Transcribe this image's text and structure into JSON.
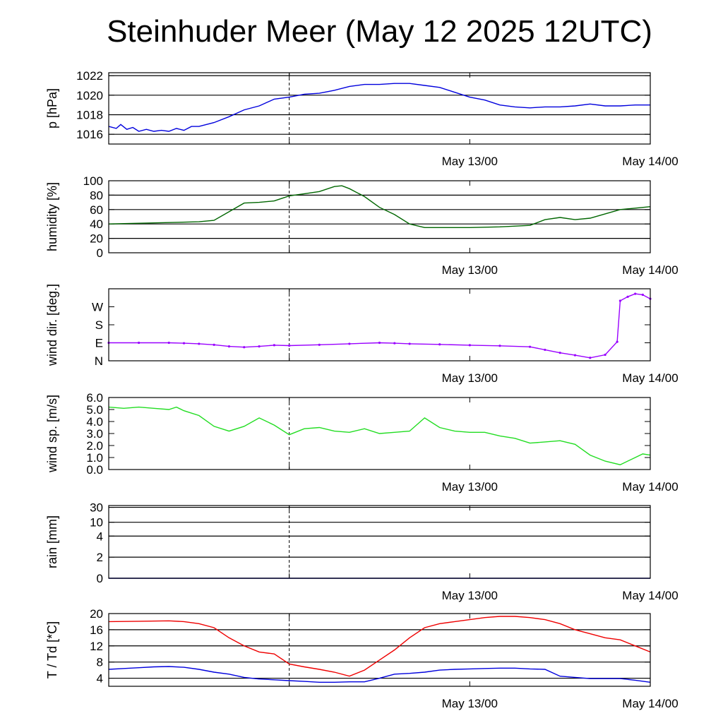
{
  "title": "Steinhuder Meer (May 12 2025 12UTC)",
  "chart_data": [
    {
      "type": "line",
      "ylabel": "p [hPa]",
      "ylim": [
        1015,
        1022.3
      ],
      "yticks": [
        1016,
        1018,
        1020,
        1022
      ],
      "ytick_labels": [
        "1016",
        "1018",
        "1020",
        "1022"
      ],
      "grid": true,
      "xlim": [
        0,
        36
      ],
      "xticks": [
        12,
        24,
        36
      ],
      "xtick_labels": [
        "",
        "May 13/00",
        "May 14/00"
      ],
      "marker_x": 12,
      "series": [
        {
          "color": "#0000dd",
          "x": [
            0,
            0.5,
            0.8,
            1.2,
            1.6,
            2.0,
            2.5,
            3.0,
            3.5,
            4.0,
            4.5,
            5.0,
            5.5,
            6.0,
            7.0,
            8.0,
            9.0,
            10.0,
            11.0,
            12.0,
            13.0,
            14.0,
            15.0,
            16.0,
            17.0,
            18.0,
            19.0,
            20.0,
            21.0,
            22.0,
            23.0,
            24.0,
            25.0,
            26.0,
            27.0,
            28.0,
            29.0,
            30.0,
            31.0,
            32.0,
            33.0,
            34.0,
            35.0,
            36.0
          ],
          "y": [
            1016.8,
            1016.6,
            1017.0,
            1016.5,
            1016.7,
            1016.3,
            1016.5,
            1016.3,
            1016.4,
            1016.3,
            1016.6,
            1016.4,
            1016.8,
            1016.8,
            1017.2,
            1017.8,
            1018.5,
            1018.9,
            1019.6,
            1019.8,
            1020.1,
            1020.2,
            1020.5,
            1020.9,
            1021.1,
            1021.1,
            1021.2,
            1021.2,
            1021.0,
            1020.8,
            1020.3,
            1019.8,
            1019.5,
            1019.0,
            1018.8,
            1018.7,
            1018.8,
            1018.8,
            1018.9,
            1019.1,
            1018.9,
            1018.9,
            1019.0,
            1019.0
          ]
        }
      ]
    },
    {
      "type": "line",
      "ylabel": "humidity [%]",
      "ylim": [
        0,
        100
      ],
      "yticks": [
        0,
        20,
        40,
        60,
        80,
        100
      ],
      "ytick_labels": [
        "0",
        "20",
        "40",
        "60",
        "80",
        "100"
      ],
      "grid": true,
      "xlim": [
        0,
        36
      ],
      "xticks": [
        12,
        24,
        36
      ],
      "xtick_labels": [
        "",
        "May 13/00",
        "May 14/00"
      ],
      "marker_x": 12,
      "series": [
        {
          "color": "#006600",
          "x": [
            0,
            2,
            4,
            6,
            7,
            8,
            9,
            10,
            11,
            12,
            13,
            14,
            15,
            15.5,
            16,
            17,
            18,
            19,
            20,
            21,
            22,
            24,
            26,
            28,
            29,
            30,
            31,
            32,
            33,
            34,
            35,
            36
          ],
          "y": [
            40,
            41,
            42,
            43,
            45,
            57,
            69,
            70,
            72,
            79,
            82,
            85,
            92,
            93,
            89,
            78,
            63,
            53,
            40,
            35,
            35,
            35,
            36,
            38,
            46,
            49,
            46,
            48,
            54,
            60,
            62,
            64
          ]
        }
      ]
    },
    {
      "type": "scatter",
      "ylabel": "wind dir. [deg.]",
      "ylim": [
        0,
        360
      ],
      "yticks": [
        0,
        90,
        180,
        270
      ],
      "ytick_labels": [
        "N",
        "E",
        "S",
        "W"
      ],
      "grid": false,
      "xlim": [
        0,
        36
      ],
      "xticks": [
        12,
        24,
        36
      ],
      "xtick_labels": [
        "",
        "May 13/00",
        "May 14/00"
      ],
      "marker_x": 12,
      "series": [
        {
          "color": "#9900ff",
          "x": [
            0,
            2,
            4,
            5,
            6,
            7,
            8,
            9,
            10,
            11,
            12,
            14,
            16,
            18,
            19,
            20,
            22,
            24,
            26,
            28,
            29,
            30,
            31,
            32,
            33,
            33.8,
            34,
            34.5,
            35,
            35.5,
            36
          ],
          "y": [
            90,
            90,
            90,
            88,
            85,
            80,
            72,
            68,
            72,
            78,
            76,
            80,
            85,
            90,
            88,
            85,
            82,
            78,
            75,
            70,
            55,
            40,
            28,
            15,
            30,
            95,
            300,
            320,
            335,
            330,
            310
          ]
        }
      ]
    },
    {
      "type": "line",
      "ylabel": "wind sp. [m/s]",
      "ylim": [
        0,
        6.0
      ],
      "yticks": [
        0,
        1,
        2,
        3,
        4,
        5,
        6
      ],
      "ytick_labels": [
        "0.0",
        "1.0",
        "2.0",
        "3.0",
        "4.0",
        "5.0",
        "6.0"
      ],
      "grid": false,
      "xlim": [
        0,
        36
      ],
      "xticks": [
        12,
        24,
        36
      ],
      "xtick_labels": [
        "",
        "May 13/00",
        "May 14/00"
      ],
      "marker_x": 12,
      "series": [
        {
          "color": "#22dd22",
          "x": [
            0,
            1,
            2,
            3,
            4,
            4.5,
            5,
            6,
            7,
            8,
            9,
            10,
            11,
            12,
            13,
            14,
            15,
            16,
            17,
            18,
            19,
            20,
            21,
            22,
            23,
            24,
            25,
            26,
            27,
            28,
            29,
            30,
            31,
            32,
            33,
            34,
            35,
            35.5,
            36
          ],
          "y": [
            5.2,
            5.1,
            5.2,
            5.1,
            5.0,
            5.2,
            4.9,
            4.5,
            3.6,
            3.2,
            3.6,
            4.3,
            3.7,
            2.9,
            3.4,
            3.5,
            3.2,
            3.1,
            3.4,
            3.0,
            3.1,
            3.2,
            4.3,
            3.5,
            3.2,
            3.1,
            3.1,
            2.8,
            2.6,
            2.2,
            2.3,
            2.4,
            2.1,
            1.2,
            0.7,
            0.4,
            1.0,
            1.3,
            1.2
          ]
        }
      ]
    },
    {
      "type": "line",
      "ylabel": "rain [mm]",
      "ylim": [
        0,
        30
      ],
      "yticks": [
        0,
        2,
        4,
        10,
        30
      ],
      "ytick_labels": [
        "0",
        "2",
        "4",
        "10",
        "30"
      ],
      "scale": "nonlinear",
      "grid": true,
      "xlim": [
        0,
        36
      ],
      "xticks": [
        12,
        24,
        36
      ],
      "xtick_labels": [
        "",
        "May 13/00",
        "May 14/00"
      ],
      "marker_x": 12,
      "series": [
        {
          "color": "#0000aa",
          "x": [
            0,
            36
          ],
          "y": [
            0,
            0
          ]
        }
      ]
    },
    {
      "type": "line",
      "ylabel": "T / Td [*C]",
      "ylim": [
        2,
        20
      ],
      "yticks": [
        4,
        8,
        12,
        16,
        20
      ],
      "ytick_labels": [
        "4",
        "8",
        "12",
        "16",
        "20"
      ],
      "grid": true,
      "xlim": [
        0,
        36
      ],
      "xticks": [
        12,
        24,
        36
      ],
      "xtick_labels": [
        "",
        "May 13/00",
        "May 14/00"
      ],
      "marker_x": 12,
      "series": [
        {
          "color": "#ee0000",
          "x": [
            0,
            2,
            4,
            5,
            6,
            7,
            8,
            9,
            10,
            11,
            12,
            13,
            14,
            15,
            16,
            17,
            18,
            19,
            20,
            21,
            22,
            23,
            24,
            25,
            26,
            27,
            28,
            29,
            30,
            31,
            32,
            33,
            34,
            35,
            36
          ],
          "y": [
            18.0,
            18.1,
            18.2,
            18.0,
            17.5,
            16.5,
            14.0,
            12.0,
            10.5,
            10.0,
            7.5,
            6.8,
            6.2,
            5.5,
            4.5,
            6.0,
            8.5,
            11.0,
            14.0,
            16.5,
            17.5,
            18.0,
            18.5,
            19.0,
            19.3,
            19.3,
            19.0,
            18.5,
            17.5,
            16.0,
            15.0,
            14.0,
            13.5,
            12.0,
            10.5
          ]
        },
        {
          "color": "#0000dd",
          "x": [
            0,
            1,
            2,
            3,
            4,
            5,
            6,
            7,
            8,
            9,
            10,
            11,
            12,
            13,
            14,
            15,
            16,
            17,
            18,
            19,
            20,
            21,
            22,
            23,
            24,
            25,
            26,
            27,
            28,
            29,
            30,
            31,
            32,
            33,
            34,
            35,
            36
          ],
          "y": [
            6.2,
            6.4,
            6.6,
            6.8,
            6.9,
            6.7,
            6.2,
            5.5,
            5.0,
            4.2,
            3.8,
            3.6,
            3.4,
            3.2,
            3.0,
            3.0,
            3.1,
            3.1,
            4.0,
            5.0,
            5.2,
            5.5,
            6.0,
            6.2,
            6.3,
            6.4,
            6.5,
            6.5,
            6.3,
            6.2,
            4.5,
            4.2,
            3.9,
            3.9,
            3.9,
            3.5,
            3.0
          ]
        }
      ]
    }
  ]
}
